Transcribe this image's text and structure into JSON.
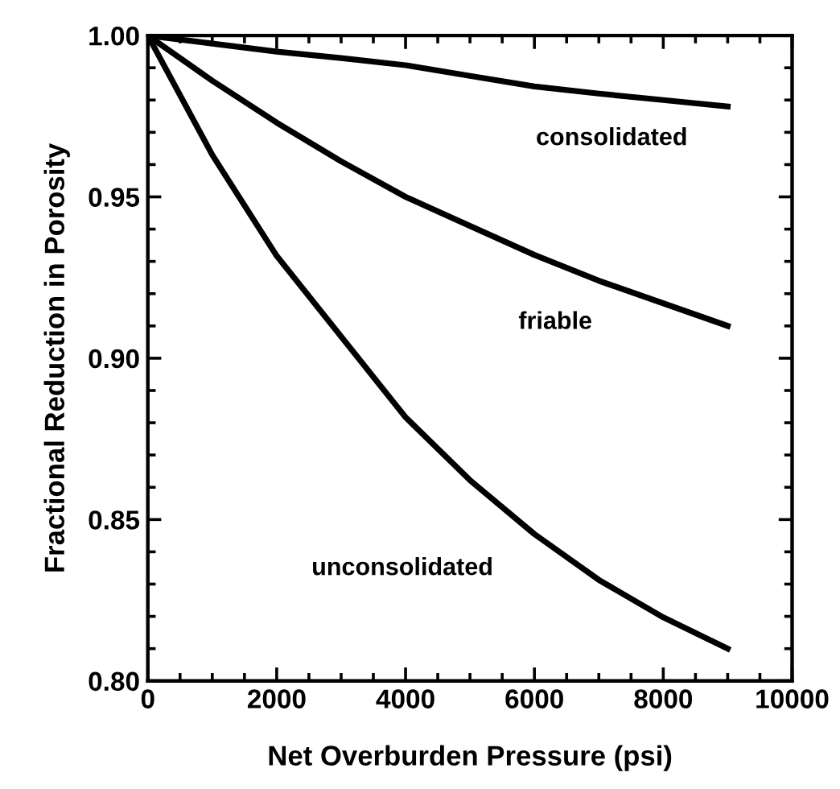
{
  "chart_data": {
    "type": "line",
    "xlabel": "Net Overburden Pressure (psi)",
    "ylabel": "Fractional Reduction in Porosity",
    "x": [
      0,
      1000,
      2000,
      3000,
      4000,
      5000,
      6000,
      7000,
      8000,
      9000
    ],
    "series": [
      {
        "name": "consolidated",
        "color": "#000000",
        "values": [
          1.0,
          0.9975,
          0.995,
          0.993,
          0.9908,
          0.9875,
          0.9842,
          0.982,
          0.98,
          0.978
        ]
      },
      {
        "name": "friable",
        "color": "#000000",
        "values": [
          1.0,
          0.986,
          0.973,
          0.961,
          0.95,
          0.941,
          0.932,
          0.924,
          0.917,
          0.91
        ]
      },
      {
        "name": "unconsolidated",
        "color": "#000000",
        "values": [
          1.0,
          0.963,
          0.9317,
          0.9067,
          0.8817,
          0.8622,
          0.8455,
          0.8313,
          0.8197,
          0.81
        ]
      }
    ],
    "xlim": [
      0,
      10000
    ],
    "xticks": [
      0,
      2000,
      4000,
      6000,
      8000,
      10000
    ],
    "ylim": [
      0.8,
      1.0
    ],
    "yticks": [
      {
        "value": 0.8,
        "label": "0.80"
      },
      {
        "value": 0.85,
        "label": "0.85"
      },
      {
        "value": 0.9,
        "label": "0.90"
      },
      {
        "value": 0.95,
        "label": "0.95"
      },
      {
        "value": 1.0,
        "label": "1.00"
      }
    ],
    "grid": false,
    "legend": false,
    "marker": "none",
    "line_style": "solid"
  }
}
